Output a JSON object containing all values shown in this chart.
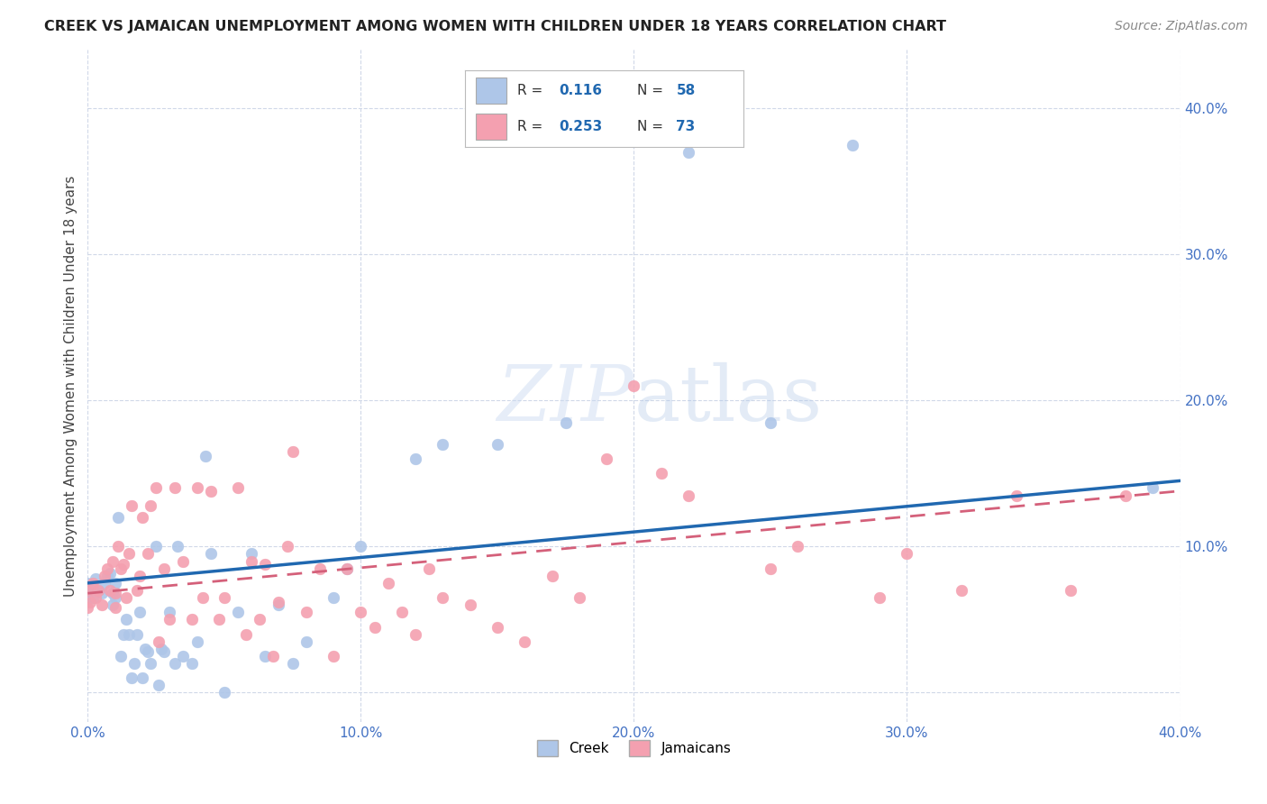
{
  "title": "CREEK VS JAMAICAN UNEMPLOYMENT AMONG WOMEN WITH CHILDREN UNDER 18 YEARS CORRELATION CHART",
  "source": "Source: ZipAtlas.com",
  "ylabel": "Unemployment Among Women with Children Under 18 years",
  "xlim": [
    0.0,
    0.4
  ],
  "ylim": [
    -0.02,
    0.44
  ],
  "xticks": [
    0.0,
    0.1,
    0.2,
    0.3,
    0.4
  ],
  "yticks": [
    0.0,
    0.1,
    0.2,
    0.3,
    0.4
  ],
  "xtick_labels": [
    "0.0%",
    "10.0%",
    "20.0%",
    "30.0%",
    "40.0%"
  ],
  "ytick_labels_right": [
    "",
    "10.0%",
    "20.0%",
    "30.0%",
    "40.0%"
  ],
  "creek_color": "#aec6e8",
  "jamaican_color": "#f4a0b0",
  "creek_line_color": "#2068b0",
  "jamaican_line_color": "#d4607a",
  "creek_R": 0.116,
  "creek_N": 58,
  "jamaican_R": 0.253,
  "jamaican_N": 73,
  "background_color": "#ffffff",
  "grid_color": "#d0d8e8",
  "creek_line_start_y": 0.075,
  "creek_line_end_y": 0.145,
  "jamaican_line_start_y": 0.068,
  "jamaican_line_end_y": 0.138,
  "creek_points_x": [
    0.0,
    0.0,
    0.0,
    0.002,
    0.002,
    0.003,
    0.004,
    0.005,
    0.006,
    0.007,
    0.008,
    0.009,
    0.009,
    0.01,
    0.01,
    0.011,
    0.012,
    0.013,
    0.014,
    0.015,
    0.016,
    0.017,
    0.018,
    0.019,
    0.02,
    0.021,
    0.022,
    0.023,
    0.025,
    0.026,
    0.027,
    0.028,
    0.03,
    0.032,
    0.033,
    0.035,
    0.038,
    0.04,
    0.043,
    0.045,
    0.05,
    0.055,
    0.06,
    0.065,
    0.07,
    0.075,
    0.08,
    0.09,
    0.095,
    0.1,
    0.12,
    0.13,
    0.15,
    0.175,
    0.22,
    0.25,
    0.28,
    0.39
  ],
  "creek_points_y": [
    0.065,
    0.07,
    0.075,
    0.065,
    0.072,
    0.078,
    0.07,
    0.068,
    0.075,
    0.08,
    0.082,
    0.06,
    0.068,
    0.065,
    0.075,
    0.12,
    0.025,
    0.04,
    0.05,
    0.04,
    0.01,
    0.02,
    0.04,
    0.055,
    0.01,
    0.03,
    0.028,
    0.02,
    0.1,
    0.005,
    0.03,
    0.028,
    0.055,
    0.02,
    0.1,
    0.025,
    0.02,
    0.035,
    0.162,
    0.095,
    0.0,
    0.055,
    0.095,
    0.025,
    0.06,
    0.02,
    0.035,
    0.065,
    0.085,
    0.1,
    0.16,
    0.17,
    0.17,
    0.185,
    0.37,
    0.185,
    0.375,
    0.14
  ],
  "jamaican_points_x": [
    0.0,
    0.0,
    0.001,
    0.002,
    0.003,
    0.004,
    0.005,
    0.006,
    0.007,
    0.008,
    0.009,
    0.01,
    0.01,
    0.011,
    0.012,
    0.013,
    0.014,
    0.015,
    0.016,
    0.018,
    0.019,
    0.02,
    0.022,
    0.023,
    0.025,
    0.026,
    0.028,
    0.03,
    0.032,
    0.035,
    0.038,
    0.04,
    0.042,
    0.045,
    0.048,
    0.05,
    0.055,
    0.058,
    0.06,
    0.063,
    0.065,
    0.068,
    0.07,
    0.073,
    0.075,
    0.08,
    0.085,
    0.09,
    0.095,
    0.1,
    0.105,
    0.11,
    0.115,
    0.12,
    0.125,
    0.13,
    0.14,
    0.15,
    0.16,
    0.17,
    0.18,
    0.19,
    0.2,
    0.21,
    0.22,
    0.25,
    0.26,
    0.29,
    0.3,
    0.32,
    0.34,
    0.36,
    0.38
  ],
  "jamaican_points_y": [
    0.058,
    0.07,
    0.062,
    0.075,
    0.065,
    0.07,
    0.06,
    0.08,
    0.085,
    0.07,
    0.09,
    0.058,
    0.068,
    0.1,
    0.085,
    0.088,
    0.065,
    0.095,
    0.128,
    0.07,
    0.08,
    0.12,
    0.095,
    0.128,
    0.14,
    0.035,
    0.085,
    0.05,
    0.14,
    0.09,
    0.05,
    0.14,
    0.065,
    0.138,
    0.05,
    0.065,
    0.14,
    0.04,
    0.09,
    0.05,
    0.088,
    0.025,
    0.062,
    0.1,
    0.165,
    0.055,
    0.085,
    0.025,
    0.085,
    0.055,
    0.045,
    0.075,
    0.055,
    0.04,
    0.085,
    0.065,
    0.06,
    0.045,
    0.035,
    0.08,
    0.065,
    0.16,
    0.21,
    0.15,
    0.135,
    0.085,
    0.1,
    0.065,
    0.095,
    0.07,
    0.135,
    0.07,
    0.135
  ]
}
